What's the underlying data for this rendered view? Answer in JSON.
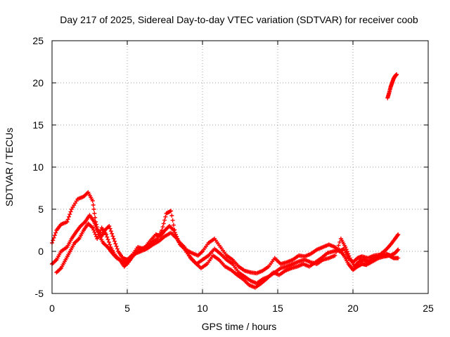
{
  "chart_data": {
    "type": "scatter",
    "title": "Day 217 of 2025, Sidereal Day-to-day VTEC variation (SDTVAR) for receiver coob",
    "xlabel": "GPS time / hours",
    "ylabel": "SDTVAR / TECUs",
    "xlim": [
      0,
      25
    ],
    "ylim": [
      -5,
      25
    ],
    "xticks": [
      "0",
      "5",
      "10",
      "15",
      "20",
      "25"
    ],
    "yticks": [
      "-5",
      "0",
      "5",
      "10",
      "15",
      "20",
      "25"
    ],
    "grid": true,
    "marker": "+",
    "color": "#ff0000",
    "series": [
      {
        "name": "track-1",
        "points": [
          [
            0,
            1.0
          ],
          [
            0.3,
            2.5
          ],
          [
            0.6,
            3.2
          ],
          [
            1.0,
            3.5
          ],
          [
            1.3,
            5.0
          ],
          [
            1.7,
            6.2
          ],
          [
            2.1,
            6.5
          ],
          [
            2.4,
            7.0
          ],
          [
            2.7,
            6.0
          ],
          [
            2.9,
            3.5
          ],
          [
            3.1,
            2.0
          ],
          [
            3.4,
            1.0
          ],
          [
            3.7,
            0.5
          ],
          [
            4.0,
            -0.2
          ],
          [
            4.3,
            -0.8
          ],
          [
            4.7,
            -1.2
          ],
          [
            5.0,
            -1.5
          ],
          [
            5.4,
            -0.5
          ],
          [
            5.8,
            0.2
          ],
          [
            6.2,
            0.5
          ],
          [
            6.6,
            1.0
          ],
          [
            7.0,
            1.5
          ],
          [
            7.3,
            2.5
          ],
          [
            7.6,
            4.5
          ],
          [
            7.9,
            4.8
          ],
          [
            8.2,
            2.0
          ],
          [
            8.5,
            0.8
          ],
          [
            8.9,
            0.2
          ],
          [
            9.3,
            -0.2
          ],
          [
            9.7,
            -0.5
          ],
          [
            10.0,
            0.0
          ],
          [
            10.4,
            1.0
          ],
          [
            10.8,
            1.5
          ],
          [
            11.2,
            0.5
          ],
          [
            11.6,
            -0.5
          ],
          [
            12.0,
            -1.0
          ],
          [
            12.4,
            -1.8
          ],
          [
            12.8,
            -2.3
          ],
          [
            13.2,
            -2.5
          ],
          [
            13.6,
            -2.6
          ],
          [
            14.0,
            -2.3
          ],
          [
            14.4,
            -1.8
          ],
          [
            14.8,
            -0.8
          ],
          [
            15.2,
            -1.5
          ],
          [
            15.6,
            -1.3
          ],
          [
            16.0,
            -1.0
          ],
          [
            16.4,
            -0.5
          ],
          [
            16.8,
            -0.6
          ],
          [
            17.2,
            -0.3
          ],
          [
            17.6,
            0.2
          ],
          [
            18.0,
            0.5
          ],
          [
            18.4,
            0.8
          ],
          [
            18.8,
            0.5
          ],
          [
            19.1,
            0.0
          ],
          [
            19.4,
            0.3
          ],
          [
            19.7,
            -0.8
          ],
          [
            20.0,
            -1.3
          ],
          [
            20.3,
            -0.8
          ],
          [
            20.6,
            -0.6
          ],
          [
            21.0,
            -0.8
          ],
          [
            21.4,
            -0.5
          ],
          [
            21.8,
            -0.4
          ],
          [
            22.2,
            0.2
          ],
          [
            22.5,
            0.8
          ],
          [
            22.8,
            1.5
          ],
          [
            23.0,
            2.0
          ]
        ]
      },
      {
        "name": "track-2",
        "points": [
          [
            0,
            -1.5
          ],
          [
            0.3,
            -1.0
          ],
          [
            0.6,
            0.0
          ],
          [
            1.0,
            0.5
          ],
          [
            1.3,
            1.5
          ],
          [
            1.6,
            2.3
          ],
          [
            1.9,
            3.0
          ],
          [
            2.2,
            3.5
          ],
          [
            2.5,
            4.3
          ],
          [
            2.8,
            3.5
          ],
          [
            3.0,
            2.5
          ],
          [
            3.3,
            1.8
          ],
          [
            3.5,
            2.5
          ],
          [
            3.8,
            3.0
          ],
          [
            4.1,
            1.5
          ],
          [
            4.4,
            0.0
          ],
          [
            4.7,
            -0.8
          ],
          [
            5.0,
            -1.0
          ],
          [
            5.3,
            -0.5
          ],
          [
            5.7,
            0.5
          ],
          [
            6.1,
            0.3
          ],
          [
            6.5,
            1.2
          ],
          [
            6.9,
            2.0
          ],
          [
            7.2,
            1.8
          ],
          [
            7.5,
            2.5
          ],
          [
            7.8,
            3.0
          ],
          [
            8.1,
            2.5
          ],
          [
            8.4,
            1.2
          ],
          [
            8.8,
            0.5
          ],
          [
            9.2,
            -0.8
          ],
          [
            9.6,
            -1.5
          ],
          [
            10.0,
            -1.0
          ],
          [
            10.4,
            -0.5
          ],
          [
            10.8,
            0.3
          ],
          [
            11.2,
            -0.3
          ],
          [
            11.6,
            -1.0
          ],
          [
            12.0,
            -1.5
          ],
          [
            12.4,
            -2.5
          ],
          [
            12.8,
            -3.0
          ],
          [
            13.2,
            -3.5
          ],
          [
            13.6,
            -3.8
          ],
          [
            14.0,
            -3.3
          ],
          [
            14.4,
            -3.0
          ],
          [
            14.8,
            -2.5
          ],
          [
            15.2,
            -2.0
          ],
          [
            15.6,
            -1.8
          ],
          [
            16.0,
            -1.5
          ],
          [
            16.4,
            -1.2
          ],
          [
            16.8,
            -1.0
          ],
          [
            17.2,
            -1.3
          ],
          [
            17.6,
            -1.5
          ],
          [
            18.0,
            -1.0
          ],
          [
            18.4,
            -0.8
          ],
          [
            18.8,
            -0.5
          ],
          [
            19.2,
            1.5
          ],
          [
            19.5,
            0.5
          ],
          [
            19.8,
            -0.8
          ],
          [
            20.1,
            -1.8
          ],
          [
            20.4,
            -1.2
          ],
          [
            20.7,
            -1.0
          ],
          [
            21.0,
            -1.2
          ],
          [
            21.4,
            -0.8
          ],
          [
            21.8,
            -0.5
          ],
          [
            22.2,
            -0.3
          ],
          [
            22.5,
            -0.5
          ],
          [
            22.8,
            -0.2
          ],
          [
            23.0,
            0.2
          ]
        ]
      },
      {
        "name": "track-3",
        "points": [
          [
            0.3,
            -2.5
          ],
          [
            0.6,
            -2.0
          ],
          [
            0.9,
            -1.0
          ],
          [
            1.2,
            0.0
          ],
          [
            1.5,
            1.0
          ],
          [
            1.8,
            1.5
          ],
          [
            2.1,
            2.5
          ],
          [
            2.4,
            3.3
          ],
          [
            2.7,
            2.8
          ],
          [
            3.0,
            1.5
          ],
          [
            3.3,
            2.8
          ],
          [
            3.6,
            2.0
          ],
          [
            3.9,
            0.5
          ],
          [
            4.2,
            -0.5
          ],
          [
            4.5,
            -1.0
          ],
          [
            4.8,
            -1.8
          ],
          [
            5.1,
            -1.2
          ],
          [
            5.5,
            -0.3
          ],
          [
            5.9,
            0.0
          ],
          [
            6.3,
            0.3
          ],
          [
            6.7,
            0.8
          ],
          [
            7.1,
            1.2
          ],
          [
            7.5,
            1.8
          ],
          [
            7.9,
            2.2
          ],
          [
            8.3,
            1.5
          ],
          [
            8.7,
            0.5
          ],
          [
            9.1,
            -0.5
          ],
          [
            9.5,
            -1.3
          ],
          [
            9.9,
            -2.0
          ],
          [
            10.3,
            -1.5
          ],
          [
            10.7,
            -0.5
          ],
          [
            11.1,
            -1.0
          ],
          [
            11.5,
            -1.8
          ],
          [
            11.9,
            -2.2
          ],
          [
            12.3,
            -2.8
          ],
          [
            12.7,
            -3.3
          ],
          [
            13.1,
            -4.0
          ],
          [
            13.5,
            -4.3
          ],
          [
            13.9,
            -3.8
          ],
          [
            14.3,
            -3.2
          ],
          [
            14.7,
            -2.5
          ],
          [
            15.1,
            -2.8
          ],
          [
            15.5,
            -2.3
          ],
          [
            15.9,
            -2.0
          ],
          [
            16.3,
            -1.8
          ],
          [
            16.7,
            -1.5
          ],
          [
            17.1,
            -1.8
          ],
          [
            17.5,
            -1.3
          ],
          [
            17.9,
            -0.8
          ],
          [
            18.3,
            -0.2
          ],
          [
            18.7,
            0.0
          ],
          [
            19.1,
            0.2
          ],
          [
            19.4,
            -0.5
          ],
          [
            19.7,
            -1.5
          ],
          [
            20.0,
            -2.2
          ],
          [
            20.3,
            -1.8
          ],
          [
            20.6,
            -1.5
          ],
          [
            20.9,
            -1.6
          ],
          [
            21.3,
            -1.2
          ],
          [
            21.7,
            -0.8
          ],
          [
            22.1,
            -0.6
          ],
          [
            22.4,
            -0.5
          ],
          [
            22.7,
            -0.8
          ],
          [
            23.0,
            -0.8
          ]
        ]
      },
      {
        "name": "late-segment",
        "points": [
          [
            22.3,
            18.2
          ],
          [
            22.4,
            18.8
          ],
          [
            22.5,
            19.5
          ],
          [
            22.6,
            20.0
          ],
          [
            22.7,
            20.5
          ],
          [
            22.8,
            20.8
          ],
          [
            22.9,
            21.0
          ]
        ]
      }
    ]
  }
}
